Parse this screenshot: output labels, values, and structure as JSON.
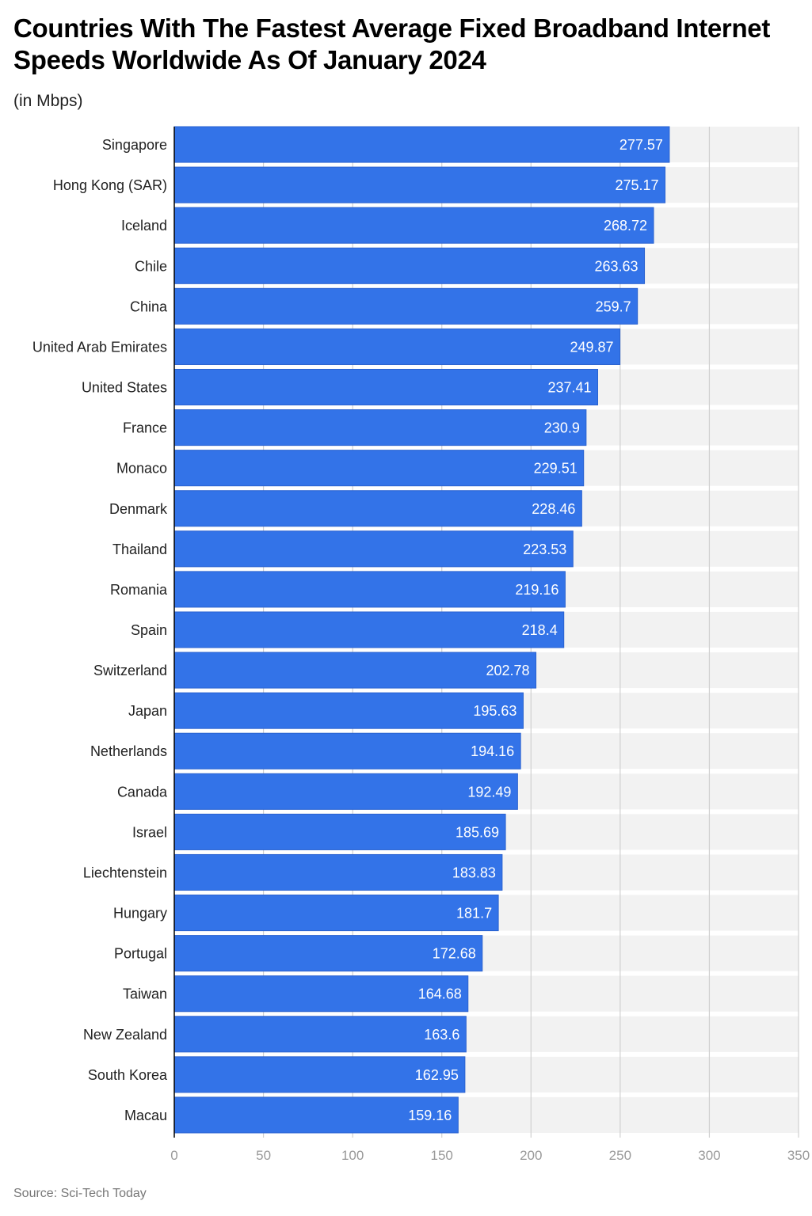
{
  "chart_data": {
    "type": "bar",
    "orientation": "horizontal",
    "title": "Countries With The Fastest Average Fixed Broadband Internet Speeds Worldwide As Of January 2024",
    "subtitle": "(in Mbps)",
    "source": "Source: Sci-Tech Today",
    "categories": [
      "Singapore",
      "Hong Kong (SAR)",
      "Iceland",
      "Chile",
      "China",
      "United Arab Emirates",
      "United States",
      "France",
      "Monaco",
      "Denmark",
      "Thailand",
      "Romania",
      "Spain",
      "Switzerland",
      "Japan",
      "Netherlands",
      "Canada",
      "Israel",
      "Liechtenstein",
      "Hungary",
      "Portugal",
      "Taiwan",
      "New Zealand",
      "South Korea",
      "Macau"
    ],
    "values": [
      277.57,
      275.17,
      268.72,
      263.63,
      259.7,
      249.87,
      237.41,
      230.9,
      229.51,
      228.46,
      223.53,
      219.16,
      218.4,
      202.78,
      195.63,
      194.16,
      192.49,
      185.69,
      183.83,
      181.7,
      172.68,
      164.68,
      163.6,
      162.95,
      159.16
    ],
    "value_labels": [
      "277.57",
      "275.17",
      "268.72",
      "263.63",
      "259.7",
      "249.87",
      "237.41",
      "230.9",
      "229.51",
      "228.46",
      "223.53",
      "219.16",
      "218.4",
      "202.78",
      "195.63",
      "194.16",
      "192.49",
      "185.69",
      "183.83",
      "181.7",
      "172.68",
      "164.68",
      "163.6",
      "162.95",
      "159.16"
    ],
    "xlim": [
      0,
      350
    ],
    "xticks": [
      "0",
      "50",
      "100",
      "150",
      "200",
      "250",
      "300",
      "350"
    ],
    "grid": true,
    "bar_color": "#3373e8",
    "band_color": "#f2f2f2"
  }
}
